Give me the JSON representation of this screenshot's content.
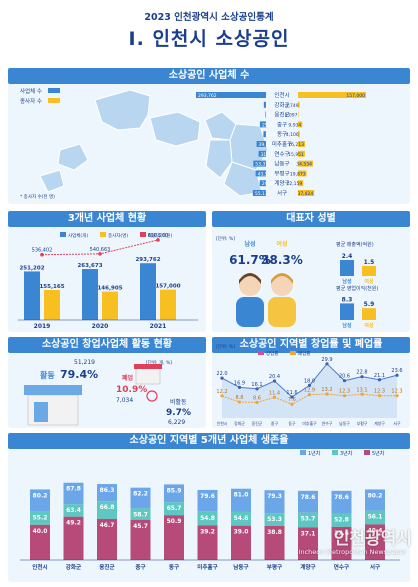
{
  "header": {
    "subtitle": "2023 인천광역시 소상공인통계",
    "title": "I. 인천시 소상공인"
  },
  "sections": {
    "s1": "소상공인 사업체 수",
    "s2": "3개년 사업체 현황",
    "s3": "대표자 성별",
    "s4": "소상공인 창업사업체 활동 현황",
    "s5": "소상공인 지역별 창업률 및 폐업률",
    "s6": "소상공인 지역별 5개년 사업체 생존율"
  },
  "colors": {
    "blue": "#3b86d3",
    "yellow": "#f7bf1f",
    "red": "#e0405a",
    "navy": "#1b3f8a",
    "purple": "#8b2f5a"
  },
  "chart_data": [
    {
      "type": "bar",
      "title": "소상공인 사업체 수",
      "categories": [
        "인천시",
        "강화군",
        "옹진군",
        "중구",
        "동구",
        "미추홀구",
        "연수구",
        "남동구",
        "부평구",
        "계양구",
        "서구"
      ],
      "series": [
        {
          "name": "사업체 수",
          "values": [
            293762,
            9031,
            2511,
            25411,
            10942,
            39647,
            31157,
            53339,
            43596,
            26281,
            55137
          ]
        },
        {
          "name": "종사자 수",
          "values": [
            157000,
            3749,
            1097,
            9934,
            4106,
            16213,
            15951,
            34534,
            19873,
            12159,
            37424
          ]
        }
      ],
      "labels": {
        "series1": [
          "293,762",
          "9,031",
          "2,511",
          "25,411",
          "10,942",
          "39,647",
          "31,157",
          "53,339",
          "43,596",
          "26,281",
          "55,137"
        ],
        "series2": [
          "157,000",
          "3,749",
          "1,097",
          "9,934",
          "4,106",
          "16,213",
          "15,951",
          "34,534",
          "19,873",
          "12,159",
          "37,424"
        ]
      },
      "legend": [
        "사업체 수",
        "종사자 수"
      ],
      "note": "* 종사자 수(천 명)"
    },
    {
      "type": "bar",
      "title": "3개년 사업체 현황",
      "categories": [
        "2019",
        "2020",
        "2021"
      ],
      "series": [
        {
          "name": "사업체(개)",
          "values": [
            251202,
            263673,
            293762
          ],
          "labels": [
            "251,202",
            "263,673",
            "293,762"
          ]
        },
        {
          "name": "종사자(명)",
          "values": [
            155165,
            146905,
            157000
          ],
          "labels": [
            "155,165",
            "146,905",
            "157,000"
          ]
        },
        {
          "name": "매출액(억원)",
          "values": [
            536402,
            540663,
            610260
          ],
          "labels": [
            "536,402",
            "540,663",
            "610,260"
          ]
        }
      ]
    },
    {
      "type": "bar",
      "title": "대표자 성별",
      "categories": [
        "남성",
        "여성"
      ],
      "share": {
        "남성": "61.7%",
        "여성": "38.3%"
      },
      "unit": "[단위: %]",
      "metrics": [
        {
          "name": "평균 매출액(억원)",
          "values": [
            2.4,
            1.5
          ]
        },
        {
          "name": "평균 영업이익(천원)",
          "values": [
            8.3,
            5.9
          ]
        }
      ]
    },
    {
      "type": "pie",
      "title": "소상공인 창업사업체 활동 현황",
      "unit": "[단위: 개, %]",
      "items": [
        {
          "name": "활동",
          "rate": 79.4,
          "count": "51,219"
        },
        {
          "name": "폐업",
          "rate": 10.9,
          "count": "7,034"
        },
        {
          "name": "비활동",
          "rate": 9.7,
          "count": "6,229"
        }
      ]
    },
    {
      "type": "line",
      "title": "소상공인 지역별 창업률 및 폐업률",
      "unit": "[단위: %]",
      "categories": [
        "인천시",
        "강화군",
        "옹진군",
        "중구",
        "동구",
        "미추홀구",
        "연수구",
        "남동구",
        "부평구",
        "계양구",
        "서구"
      ],
      "series": [
        {
          "name": "창업률",
          "values": [
            22.0,
            16.9,
            16.1,
            20.4,
            11.6,
            18.0,
            29.9,
            20.6,
            22.8,
            21.1,
            23.6
          ]
        },
        {
          "name": "폐업률",
          "values": [
            12.2,
            8.8,
            8.6,
            11.4,
            7.6,
            12.9,
            13.2,
            12.3,
            13.1,
            12.3,
            12.3
          ]
        }
      ]
    },
    {
      "type": "bar",
      "title": "소상공인 지역별 5개년 사업체 생존율",
      "categories": [
        "인천시",
        "강화군",
        "옹진군",
        "중구",
        "동구",
        "미추홀구",
        "남동구",
        "부평구",
        "계양구",
        "연수구",
        "서구"
      ],
      "series": [
        {
          "name": "1년차",
          "values": [
            80.2,
            87.8,
            86.3,
            82.2,
            85.9,
            79.6,
            81.0,
            79.3,
            78.6,
            78.6,
            80.2
          ]
        },
        {
          "name": "3년차",
          "values": [
            55.2,
            63.4,
            66.8,
            58.7,
            65.7,
            54.8,
            54.6,
            53.3,
            53.7,
            52.8,
            56.1
          ]
        },
        {
          "name": "5년차",
          "values": [
            40.0,
            49.2,
            46.7,
            45.7,
            50.9,
            39.2,
            39.0,
            38.8,
            37.1,
            37.6,
            40.4
          ]
        }
      ]
    }
  ],
  "watermark": {
    "title": "인천광역시",
    "sub": "Incheon Metropolitan Newspaper"
  }
}
